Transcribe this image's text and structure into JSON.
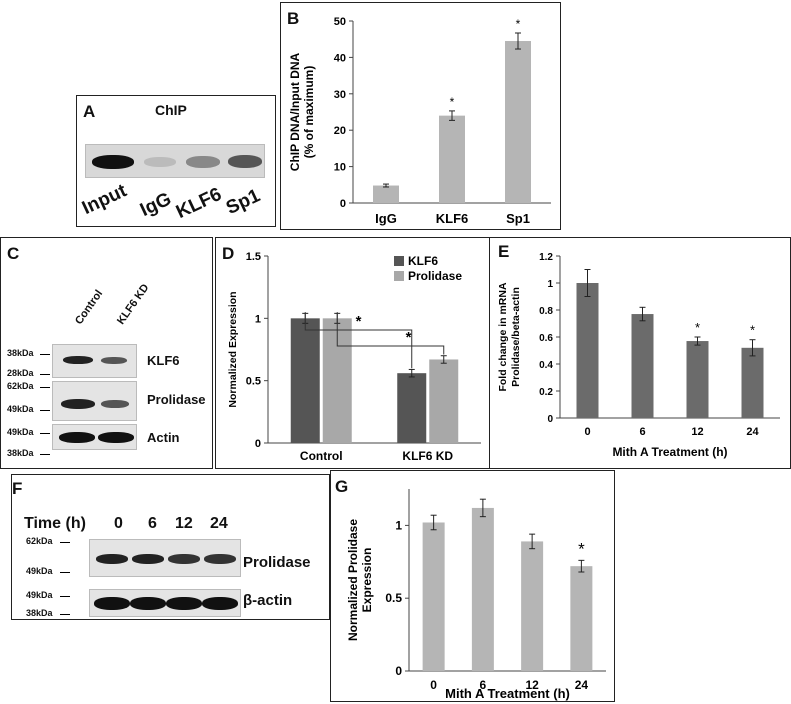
{
  "panels": {
    "A": {
      "label": "A",
      "title": "ChIP",
      "lanes": [
        "Input",
        "IgG",
        "KLF6",
        "Sp1"
      ],
      "band_intensity": [
        1.0,
        0.15,
        0.35,
        0.65
      ]
    },
    "C": {
      "label": "C",
      "lanes": [
        "Control",
        "KLF6 KD"
      ],
      "rows": [
        {
          "name": "KLF6",
          "intensity": [
            0.85,
            0.55
          ]
        },
        {
          "name": "Prolidase",
          "intensity": [
            0.85,
            0.6
          ]
        },
        {
          "name": "Actin",
          "intensity": [
            0.95,
            0.95
          ]
        }
      ],
      "markers": [
        "38kDa",
        "28kDa",
        "62kDa",
        "49kDa",
        "49kDa",
        "38kDa"
      ]
    },
    "F": {
      "label": "F",
      "header": "Time (h)",
      "lanes": [
        "0",
        "6",
        "12",
        "24"
      ],
      "rows": [
        {
          "name": "Prolidase",
          "intensity": [
            0.85,
            0.85,
            0.8,
            0.8
          ]
        },
        {
          "name": "β-actin",
          "intensity": [
            0.95,
            0.95,
            0.95,
            0.95
          ]
        }
      ],
      "markers": [
        "62kDa",
        "49kDa",
        "49kDa",
        "38kDa"
      ]
    }
  },
  "chart_data": [
    {
      "panel": "B",
      "type": "bar",
      "categories": [
        "IgG",
        "KLF6",
        "Sp1"
      ],
      "values": [
        4.8,
        24,
        44.5
      ],
      "errors": [
        0.4,
        1.3,
        2.2
      ],
      "significance": [
        "",
        "*",
        "*"
      ],
      "ylabel_lines": [
        "ChIP DNA/Input DNA",
        "(% of maximum)"
      ],
      "xlabel": "",
      "ylim": [
        0,
        50
      ],
      "yticks": [
        0,
        10,
        20,
        30,
        40,
        50
      ],
      "color": "#b5b5b5"
    },
    {
      "panel": "D",
      "type": "bar",
      "categories": [
        "Control",
        "KLF6 KD"
      ],
      "series": [
        {
          "name": "KLF6",
          "values": [
            1.0,
            0.56
          ],
          "errors": [
            0.04,
            0.03
          ],
          "color": "#555555"
        },
        {
          "name": "Prolidase",
          "values": [
            1.0,
            0.67
          ],
          "errors": [
            0.04,
            0.03
          ],
          "color": "#a8a8a8"
        }
      ],
      "ylabel": "Normalized Expression",
      "xlabel": "",
      "ylim": [
        0,
        1.5
      ],
      "yticks": [
        "0",
        "0.5",
        "1",
        "1.5"
      ],
      "significance": "*",
      "legend": "top-right"
    },
    {
      "panel": "E",
      "type": "bar",
      "categories": [
        "0",
        "6",
        "12",
        "24"
      ],
      "values": [
        1.0,
        0.77,
        0.57,
        0.52
      ],
      "errors": [
        0.1,
        0.05,
        0.03,
        0.06
      ],
      "significance": [
        "",
        "",
        "*",
        "*"
      ],
      "ylabel_lines": [
        "Fold change in mRNA",
        "Prolidase/beta-actin"
      ],
      "xlabel": "Mith A Treatment (h)",
      "ylim": [
        0,
        1.2
      ],
      "yticks": [
        "0",
        "0.2",
        "0.4",
        "0.6",
        "0.8",
        "1",
        "1.2"
      ],
      "color": "#6b6b6b"
    },
    {
      "panel": "G",
      "type": "bar",
      "categories": [
        "0",
        "6",
        "12",
        "24"
      ],
      "values": [
        1.02,
        1.12,
        0.89,
        0.72
      ],
      "errors": [
        0.05,
        0.06,
        0.05,
        0.04
      ],
      "significance": [
        "",
        "",
        "",
        "*"
      ],
      "ylabel_lines": [
        "Normalized Prolidase",
        "Expression"
      ],
      "xlabel": "Mith A Treatment (h)",
      "ylim": [
        0,
        1.25
      ],
      "yticks": [
        "0",
        "0.5",
        "1"
      ],
      "color": "#b5b5b5"
    }
  ]
}
